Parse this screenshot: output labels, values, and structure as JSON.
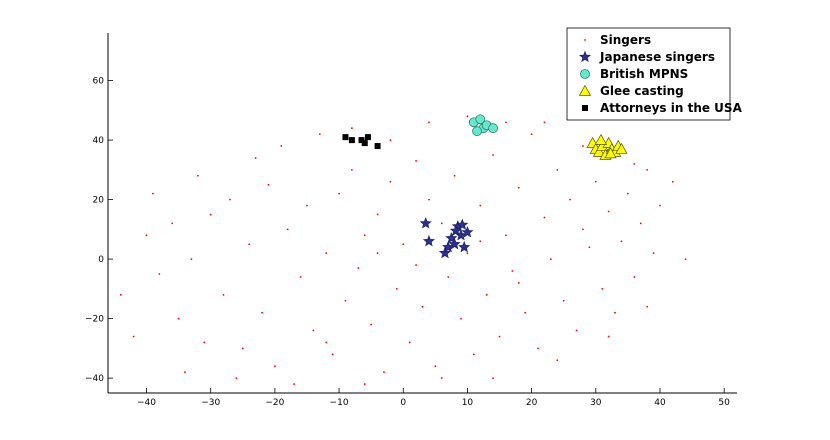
{
  "chart_data": {
    "type": "scatter",
    "title": "",
    "xlabel": "",
    "ylabel": "",
    "xlim": [
      -46,
      52
    ],
    "ylim": [
      -45,
      76
    ],
    "x_ticks": [
      -40,
      -30,
      -20,
      -10,
      0,
      10,
      20,
      30,
      40,
      50
    ],
    "y_ticks": [
      -40,
      -20,
      0,
      20,
      40,
      60
    ],
    "x_tick_labels": [
      "−40",
      "−30",
      "−20",
      "−10",
      "0",
      "10",
      "20",
      "30",
      "40",
      "50"
    ],
    "y_tick_labels": [
      "−40",
      "−20",
      "0",
      "20",
      "40",
      "60"
    ],
    "grid": false,
    "legend_position": "top-right",
    "series": [
      {
        "name": "Singers",
        "marker": "dot",
        "color": "#ff0000",
        "points": [
          [
            -40,
            8
          ],
          [
            -38,
            -5
          ],
          [
            -36,
            12
          ],
          [
            -35,
            -20
          ],
          [
            -33,
            0
          ],
          [
            -31,
            -28
          ],
          [
            -30,
            15
          ],
          [
            -28,
            -12
          ],
          [
            -27,
            20
          ],
          [
            -25,
            -30
          ],
          [
            -24,
            5
          ],
          [
            -22,
            -18
          ],
          [
            -21,
            25
          ],
          [
            -20,
            -36
          ],
          [
            -18,
            10
          ],
          [
            -16,
            -6
          ],
          [
            -15,
            18
          ],
          [
            -14,
            -24
          ],
          [
            -12,
            2
          ],
          [
            -11,
            -32
          ],
          [
            -10,
            22
          ],
          [
            -9,
            -14
          ],
          [
            -8,
            30
          ],
          [
            -7,
            -3
          ],
          [
            -6,
            8
          ],
          [
            -5,
            -22
          ],
          [
            -4,
            15
          ],
          [
            -3,
            -38
          ],
          [
            -2,
            26
          ],
          [
            -1,
            -10
          ],
          [
            0,
            5
          ],
          [
            1,
            -28
          ],
          [
            2,
            33
          ],
          [
            3,
            -16
          ],
          [
            4,
            20
          ],
          [
            5,
            -36
          ],
          [
            6,
            12
          ],
          [
            7,
            -6
          ],
          [
            8,
            28
          ],
          [
            9,
            -20
          ],
          [
            10,
            2
          ],
          [
            11,
            -32
          ],
          [
            12,
            18
          ],
          [
            13,
            -12
          ],
          [
            14,
            35
          ],
          [
            15,
            -26
          ],
          [
            16,
            8
          ],
          [
            17,
            -4
          ],
          [
            18,
            24
          ],
          [
            19,
            -18
          ],
          [
            20,
            42
          ],
          [
            21,
            -30
          ],
          [
            22,
            14
          ],
          [
            23,
            0
          ],
          [
            24,
            30
          ],
          [
            25,
            -14
          ],
          [
            26,
            20
          ],
          [
            27,
            -24
          ],
          [
            28,
            10
          ],
          [
            29,
            4
          ],
          [
            30,
            26
          ],
          [
            31,
            -10
          ],
          [
            32,
            16
          ],
          [
            33,
            -18
          ],
          [
            34,
            6
          ],
          [
            35,
            22
          ],
          [
            36,
            -6
          ],
          [
            37,
            12
          ],
          [
            38,
            30
          ],
          [
            39,
            2
          ],
          [
            40,
            18
          ],
          [
            42,
            26
          ],
          [
            44,
            0
          ],
          [
            -44,
            -12
          ],
          [
            -42,
            -26
          ],
          [
            -39,
            22
          ],
          [
            -34,
            -38
          ],
          [
            -32,
            28
          ],
          [
            -26,
            -40
          ],
          [
            -23,
            34
          ],
          [
            -19,
            38
          ],
          [
            -13,
            42
          ],
          [
            -8,
            44
          ],
          [
            -2,
            40
          ],
          [
            4,
            46
          ],
          [
            10,
            48
          ],
          [
            16,
            46
          ],
          [
            22,
            46
          ],
          [
            28,
            38
          ],
          [
            36,
            32
          ],
          [
            -17,
            -42
          ],
          [
            -6,
            -42
          ],
          [
            6,
            -40
          ],
          [
            14,
            -40
          ],
          [
            24,
            -34
          ],
          [
            32,
            -26
          ],
          [
            38,
            -16
          ],
          [
            2,
            -2
          ],
          [
            -4,
            2
          ],
          [
            12,
            6
          ],
          [
            18,
            -8
          ],
          [
            -12,
            -28
          ]
        ]
      },
      {
        "name": "Japanese singers",
        "marker": "star",
        "color": "#2b2f8e",
        "points": [
          [
            3.5,
            12
          ],
          [
            4,
            6
          ],
          [
            6.5,
            2
          ],
          [
            7,
            4
          ],
          [
            7.5,
            7
          ],
          [
            8,
            5
          ],
          [
            8.5,
            11
          ],
          [
            9,
            8
          ],
          [
            9.5,
            4
          ],
          [
            10,
            9
          ],
          [
            8.2,
            9.5
          ],
          [
            9.2,
            11.5
          ]
        ]
      },
      {
        "name": "British MPNS",
        "marker": "circle",
        "color": "#66e8cc",
        "points": [
          [
            11,
            46
          ],
          [
            12,
            47
          ],
          [
            12.5,
            44
          ],
          [
            13,
            45
          ],
          [
            14,
            44
          ],
          [
            11.5,
            43
          ]
        ]
      },
      {
        "name": "Glee casting",
        "marker": "triangle",
        "color": "#ffff00",
        "points": [
          [
            29.5,
            39
          ],
          [
            30,
            37
          ],
          [
            30.5,
            36
          ],
          [
            31,
            38
          ],
          [
            31.5,
            35
          ],
          [
            32,
            39
          ],
          [
            32.5,
            37
          ],
          [
            33,
            36
          ],
          [
            33.5,
            38
          ],
          [
            34,
            37
          ],
          [
            30.8,
            40
          ],
          [
            32.3,
            35.5
          ]
        ]
      },
      {
        "name": "Attorneys in the USA",
        "marker": "square",
        "color": "#000000",
        "points": [
          [
            -9,
            41
          ],
          [
            -8,
            40
          ],
          [
            -6.5,
            40
          ],
          [
            -6,
            39
          ],
          [
            -5.5,
            41
          ],
          [
            -4,
            38
          ]
        ]
      }
    ]
  }
}
